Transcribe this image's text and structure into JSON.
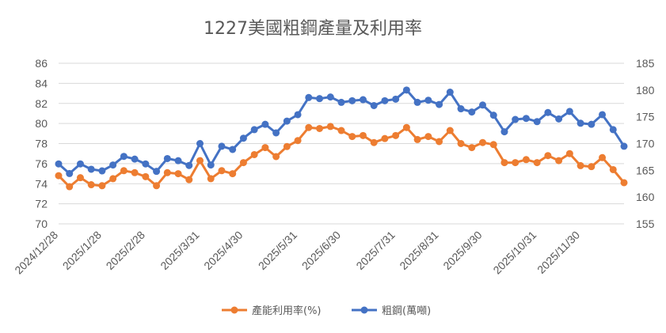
{
  "chart_data": {
    "type": "line",
    "title": "1227美國粗鋼產量及利用率",
    "x_tick_labels": [
      "2024/12/28",
      "2025/1/28",
      "2025/2/28",
      "2025/3/31",
      "2025/4/30",
      "2025/5/31",
      "2025/6/30",
      "2025/7/31",
      "2025/8/31",
      "2025/9/30",
      "2025/10/31",
      "2025/11/30"
    ],
    "left_axis": {
      "ylim": [
        70,
        86
      ],
      "ticks": [
        "70",
        "72",
        "74",
        "76",
        "78",
        "80",
        "82",
        "84",
        "86"
      ]
    },
    "right_axis": {
      "ylim": [
        155,
        185
      ],
      "ticks": [
        "155",
        "160",
        "165",
        "170",
        "175",
        "180",
        "185"
      ]
    },
    "grid": true,
    "legend_position": "bottom",
    "series": [
      {
        "name": "產能利用率(%)",
        "axis": "left",
        "color": "#ED7D31",
        "values": [
          74.8,
          73.7,
          74.6,
          73.9,
          73.8,
          74.5,
          75.3,
          75.1,
          74.7,
          73.8,
          75.1,
          75.0,
          74.4,
          76.3,
          74.5,
          75.3,
          75.0,
          76.1,
          76.9,
          77.6,
          76.7,
          77.7,
          78.3,
          79.6,
          79.5,
          79.7,
          79.3,
          78.7,
          78.8,
          78.1,
          78.5,
          78.8,
          79.6,
          78.4,
          78.7,
          78.2,
          79.3,
          78.0,
          77.6,
          78.1,
          77.9,
          76.1,
          76.1,
          76.4,
          76.1,
          76.8,
          76.3,
          77.0,
          75.8,
          75.7,
          76.6,
          75.4,
          74.1
        ]
      },
      {
        "name": "粗鋼(萬噸)",
        "axis": "right",
        "color": "#4472C4",
        "values": [
          166.2,
          164.4,
          166.2,
          165.2,
          164.9,
          166.0,
          167.6,
          167.1,
          166.2,
          164.8,
          167.2,
          166.8,
          165.9,
          170.0,
          166.0,
          169.5,
          168.9,
          171.0,
          172.6,
          173.6,
          172.0,
          174.2,
          175.4,
          178.6,
          178.4,
          178.7,
          177.7,
          178.0,
          178.2,
          177.1,
          178.0,
          178.3,
          180.0,
          177.7,
          178.1,
          177.3,
          179.6,
          176.5,
          175.9,
          177.2,
          175.3,
          172.2,
          174.5,
          174.7,
          174.1,
          175.8,
          174.6,
          176.0,
          173.8,
          173.6,
          175.4,
          172.6,
          169.5
        ]
      }
    ]
  }
}
